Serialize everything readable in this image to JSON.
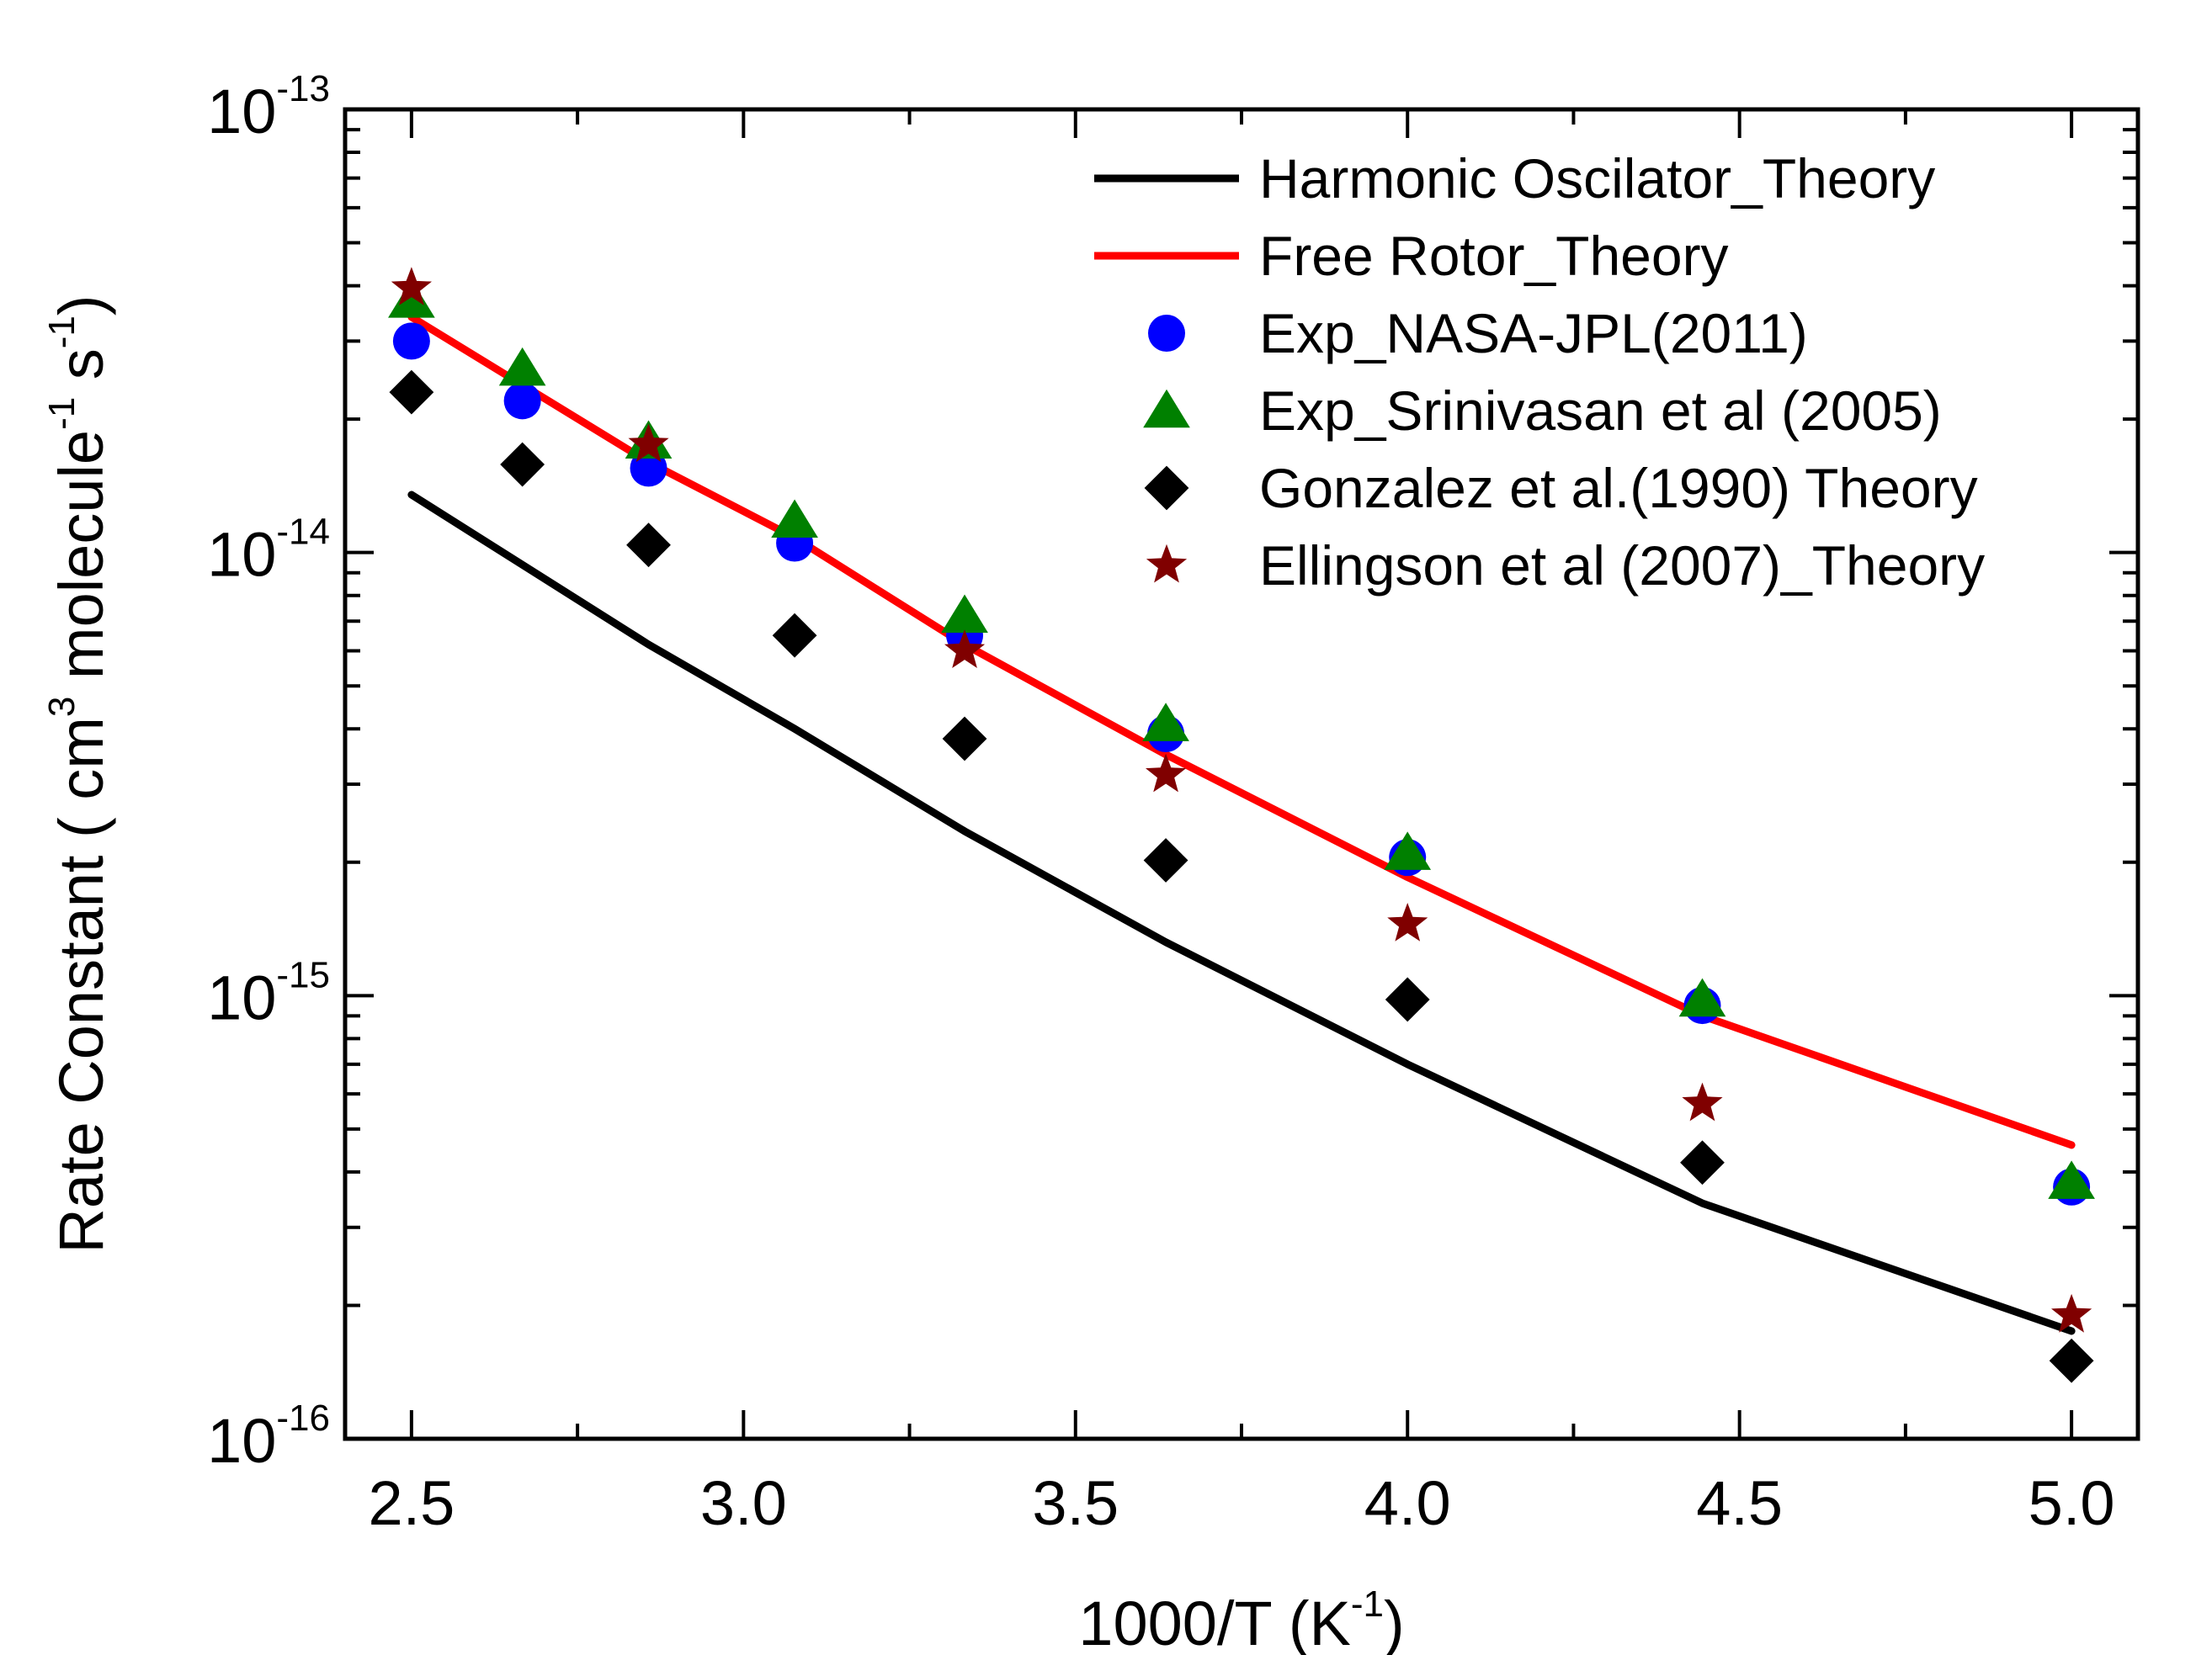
{
  "chart_data": {
    "type": "line",
    "x_title": "1000/T (K",
    "x_title_sup": "-1",
    "x_title_end": ")",
    "y_title_parts": [
      "Rate Constant ( cm",
      "3",
      " molecule",
      "-1",
      " s",
      "-1",
      ")"
    ],
    "xlim": [
      2.4,
      5.1
    ],
    "ylim_log10": [
      -16,
      -13
    ],
    "x_ticks": [
      {
        "value": 2.5,
        "label": "2.5"
      },
      {
        "value": 3.0,
        "label": "3.0"
      },
      {
        "value": 3.5,
        "label": "3.5"
      },
      {
        "value": 4.0,
        "label": "4.0"
      },
      {
        "value": 4.5,
        "label": "4.5"
      },
      {
        "value": 5.0,
        "label": "5.0"
      }
    ],
    "y_ticks": [
      {
        "exp": -13,
        "base": "10",
        "power": "-13"
      },
      {
        "exp": -14,
        "base": "10",
        "power": "-14"
      },
      {
        "exp": -15,
        "base": "10",
        "power": "-15"
      },
      {
        "exp": -16,
        "base": "10",
        "power": "-16"
      }
    ],
    "series": [
      {
        "name": "Harmonic Oscilator_Theory",
        "kind": "line",
        "color": "#000000",
        "x": [
          2.5,
          2.857,
          3.077,
          3.333,
          3.636,
          4.0,
          4.444,
          5.0
        ],
        "y": [
          1.35e-14,
          6.2e-15,
          4e-15,
          2.35e-15,
          1.32e-15,
          7e-16,
          3.4e-16,
          1.75e-16
        ]
      },
      {
        "name": "Free Rotor_Theory",
        "kind": "line",
        "color": "#ff0000",
        "x": [
          2.5,
          2.857,
          3.077,
          3.333,
          3.636,
          4.0,
          4.444,
          5.0
        ],
        "y": [
          3.4e-14,
          1.6e-14,
          1.08e-14,
          6.2e-15,
          3.5e-15,
          1.85e-15,
          9e-16,
          4.6e-16
        ]
      },
      {
        "name": "Exp_NASA-JPL(2011)",
        "kind": "marker",
        "marker": "circle",
        "color": "#0000ff",
        "x": [
          2.5,
          2.667,
          2.857,
          3.077,
          3.333,
          3.636,
          4.0,
          4.444,
          5.0
        ],
        "y": [
          3e-14,
          2.2e-14,
          1.55e-14,
          1.05e-14,
          6.5e-15,
          3.9e-15,
          2.05e-15,
          9.5e-16,
          3.7e-16
        ]
      },
      {
        "name": "Exp_Srinivasan et al (2005)",
        "kind": "marker",
        "marker": "triangle",
        "color": "#008000",
        "x": [
          2.5,
          2.667,
          2.857,
          3.077,
          3.333,
          3.636,
          4.0,
          4.444,
          5.0
        ],
        "y": [
          3.7e-14,
          2.6e-14,
          1.78e-14,
          1.18e-14,
          7.2e-15,
          4.1e-15,
          2.1e-15,
          9.8e-16,
          3.8e-16
        ]
      },
      {
        "name": "Gonzalez et al.(1990) Theory",
        "kind": "marker",
        "marker": "diamond",
        "color": "#000000",
        "x": [
          2.5,
          2.667,
          2.857,
          3.077,
          3.333,
          3.636,
          4.0,
          4.444,
          5.0
        ],
        "y": [
          2.3e-14,
          1.58e-14,
          1.04e-14,
          6.5e-15,
          3.8e-15,
          2.02e-15,
          9.8e-16,
          4.2e-16,
          1.5e-16
        ]
      },
      {
        "name": "Ellingson et al (2007)_Theory",
        "kind": "marker",
        "marker": "star",
        "color": "#800000",
        "x": [
          2.5,
          2.857,
          3.333,
          3.636,
          4.0,
          4.444,
          5.0
        ],
        "y": [
          3.95e-14,
          1.75e-14,
          6e-15,
          3.15e-15,
          1.45e-15,
          5.7e-16,
          1.9e-16
        ]
      }
    ],
    "legend_position": "top-right",
    "grid": false
  }
}
